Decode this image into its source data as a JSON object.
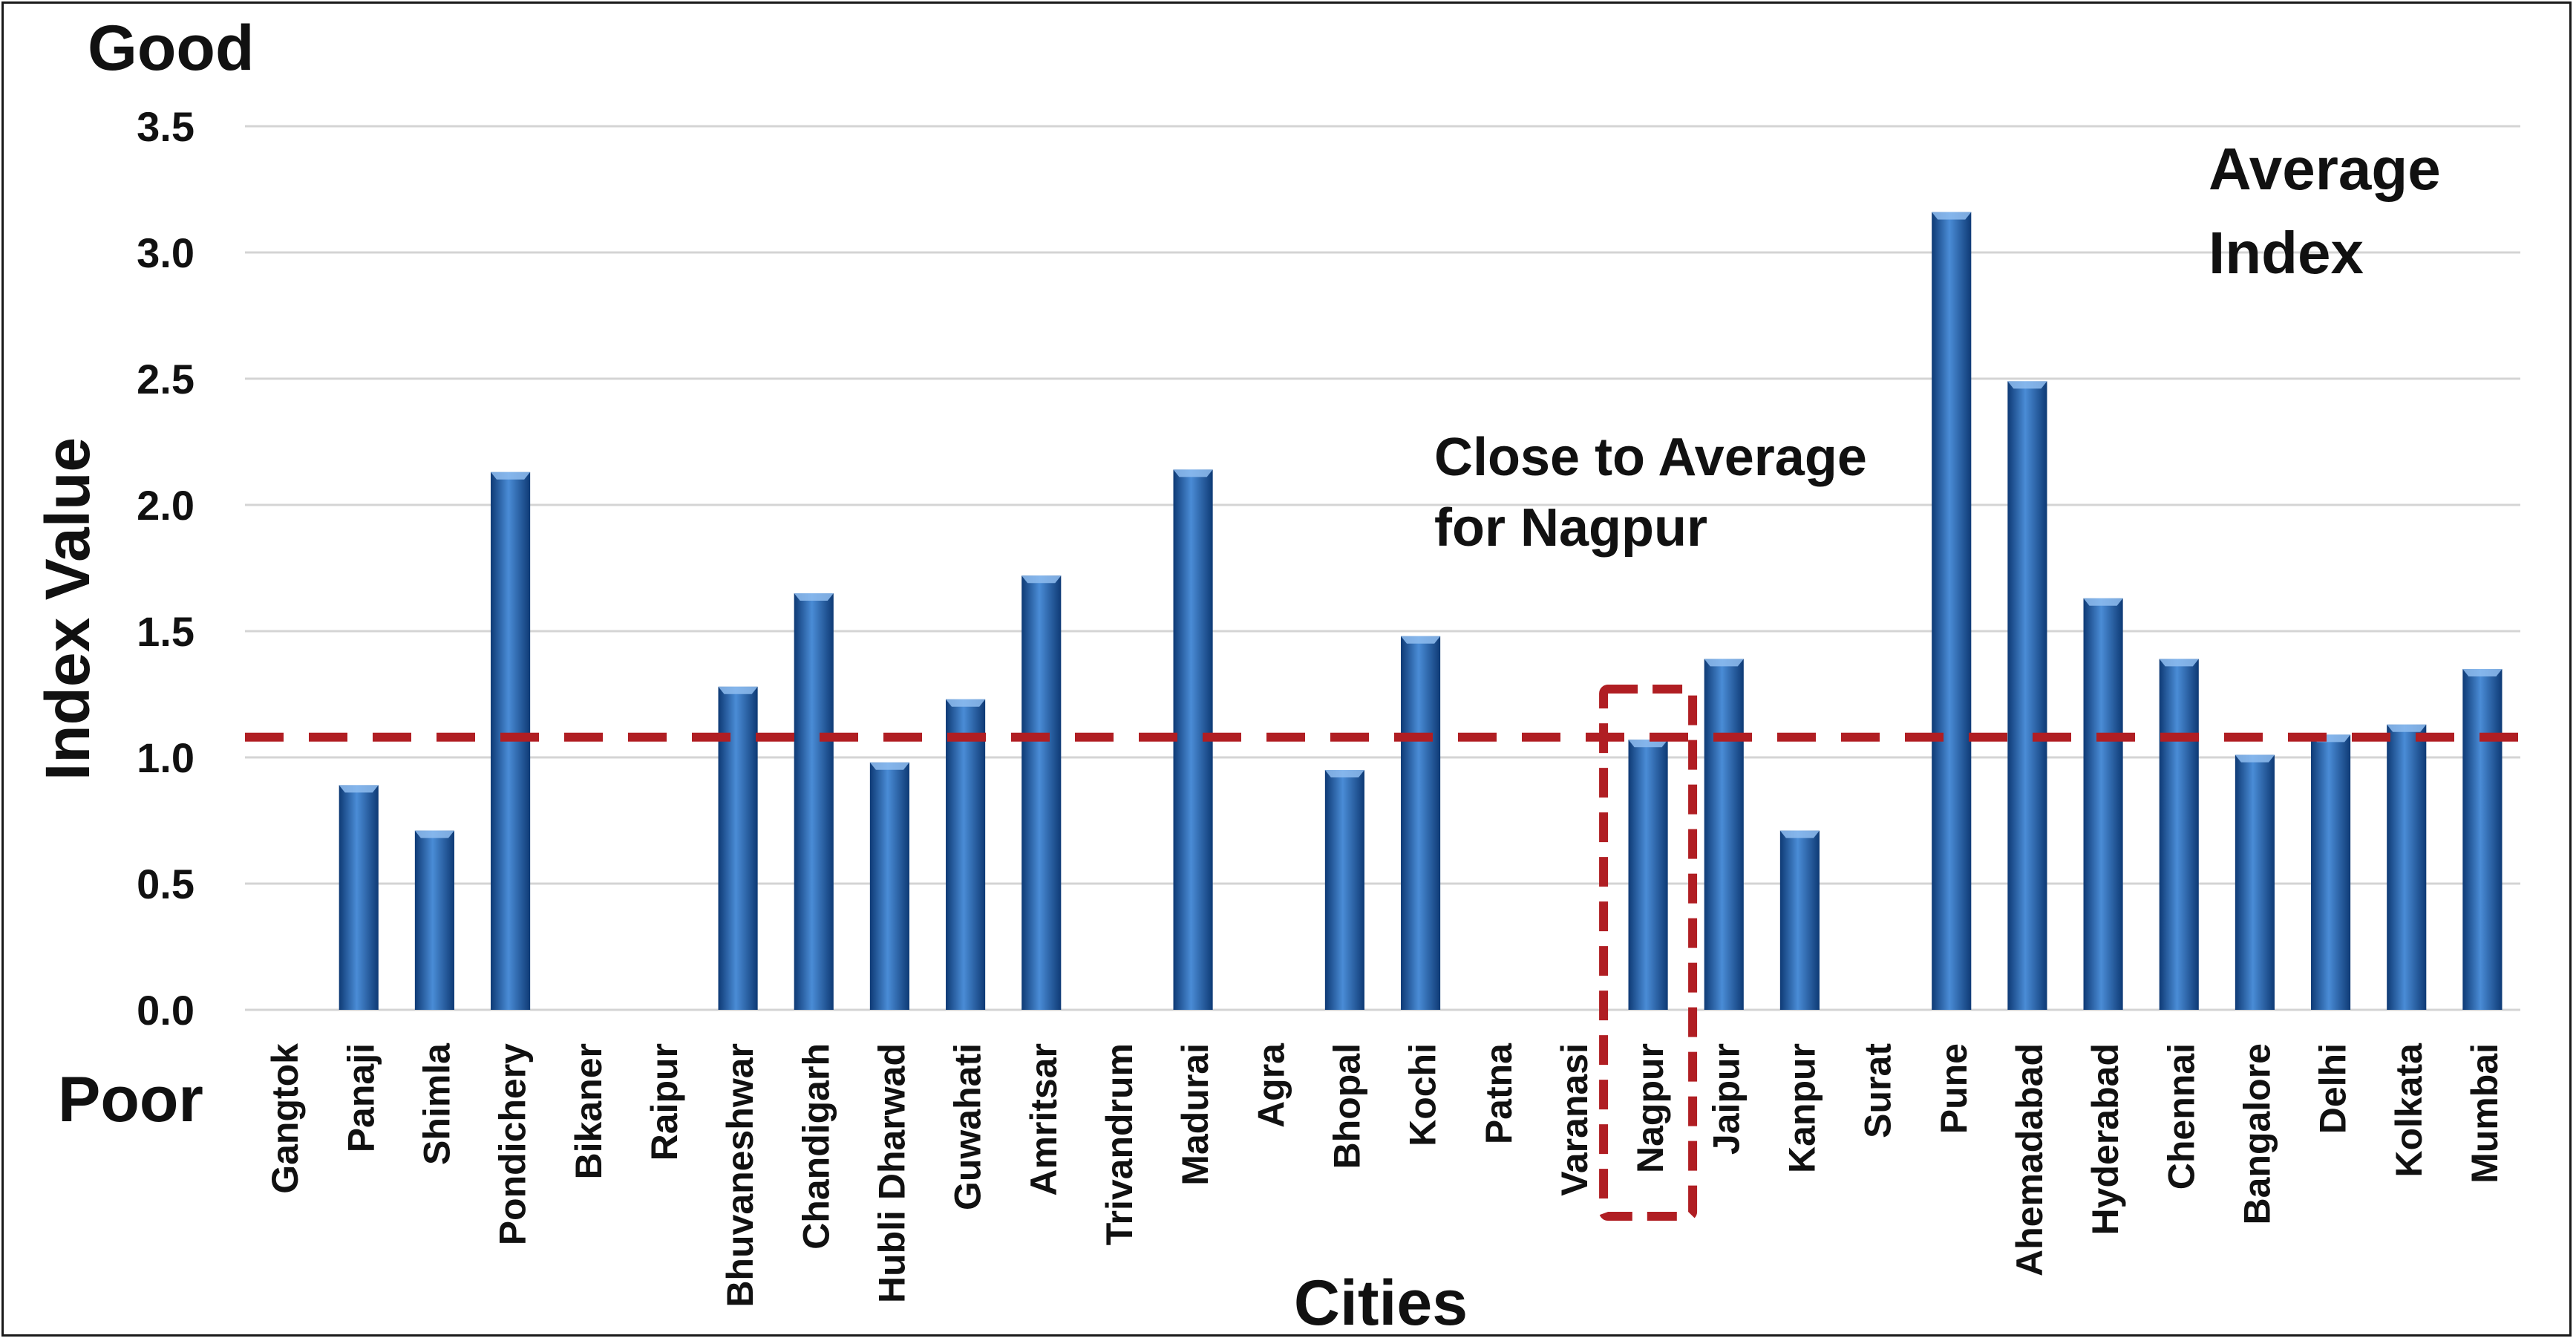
{
  "chart_data": {
    "type": "bar",
    "title": "",
    "xlabel": "Cities",
    "ylabel": "Index Value",
    "top_label": "Good",
    "bottom_label": "Poor",
    "ylim": [
      0,
      3.5
    ],
    "yticks": [
      0.0,
      0.5,
      1.0,
      1.5,
      2.0,
      2.5,
      3.0,
      3.5
    ],
    "ytick_labels": [
      "0.0",
      "0.5",
      "1.0",
      "1.5",
      "2.0",
      "2.5",
      "3.0",
      "3.5"
    ],
    "grid": true,
    "categories": [
      "Gangtok",
      "Panaji",
      "Shimla",
      "Pondichery",
      "Bikaner",
      "Raipur",
      "Bhuvaneshwar",
      "Chandigarh",
      "Hubli Dharwad",
      "Guwahati",
      "Amritsar",
      "Trivandrum",
      "Madurai",
      "Agra",
      "Bhopal",
      "Kochi",
      "Patna",
      "Varanasi",
      "Nagpur",
      "Jaipur",
      "Kanpur",
      "Surat",
      "Pune",
      "Ahemadabad",
      "Hyderabad",
      "Chennai",
      "Bangalore",
      "Delhi",
      "Kolkata",
      "Mumbai"
    ],
    "values": [
      0,
      0.89,
      0.71,
      2.13,
      0,
      0,
      1.28,
      1.65,
      0.98,
      1.23,
      1.72,
      0,
      2.14,
      0,
      0.95,
      1.48,
      0,
      0,
      1.07,
      1.39,
      0.71,
      0,
      3.16,
      2.49,
      1.63,
      1.39,
      1.01,
      1.09,
      1.13,
      1.35
    ],
    "average": {
      "value": 1.08,
      "label_line1": "Average",
      "label_line2": "Index"
    },
    "highlight": {
      "category": "Nagpur",
      "annotation_line1": "Close to Average",
      "annotation_line2": "for Nagpur"
    },
    "colors": {
      "bar": "#1f5fae",
      "bar_light": "#4a8cd6",
      "bar_dark": "#0e3a75",
      "average_line": "#b01e23",
      "highlight_box": "#b01e23",
      "grid": "#d4d4d4"
    }
  }
}
